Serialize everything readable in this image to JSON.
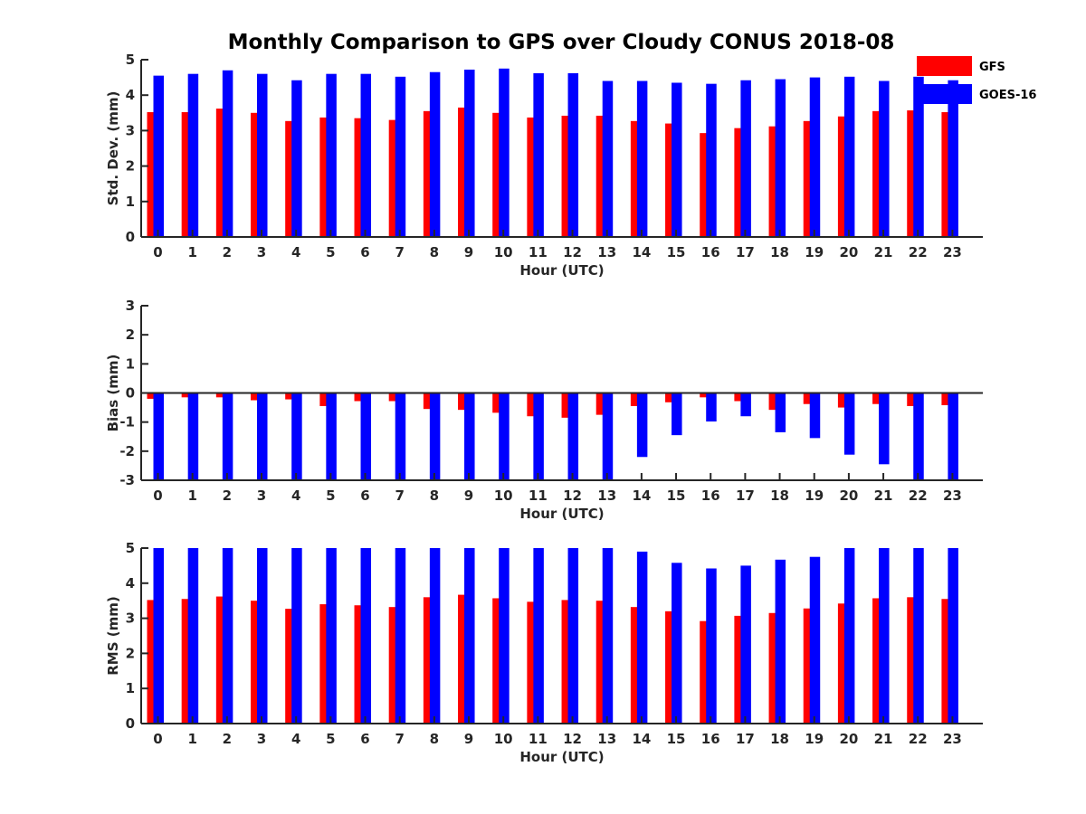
{
  "title": "Monthly Comparison to GPS over Cloudy CONUS 2018-08",
  "colors": {
    "GFS": "#ff0000",
    "GOES-16": "#0000ff",
    "axis": "#262626"
  },
  "legend": {
    "placement": "top-right",
    "entries": [
      "GFS",
      "GOES-16"
    ]
  },
  "chart_data": [
    {
      "type": "bar",
      "ylabel": "Std. Dev. (mm)",
      "xlabel": "Hour (UTC)",
      "ylim": [
        0,
        5
      ],
      "yticks": [
        0,
        1,
        2,
        3,
        4,
        5
      ],
      "categories": [
        "0",
        "1",
        "2",
        "3",
        "4",
        "5",
        "6",
        "7",
        "8",
        "9",
        "10",
        "11",
        "12",
        "13",
        "14",
        "15",
        "16",
        "17",
        "18",
        "19",
        "20",
        "21",
        "22",
        "23"
      ],
      "series": [
        {
          "name": "GFS",
          "values": [
            3.52,
            3.52,
            3.62,
            3.5,
            3.27,
            3.37,
            3.35,
            3.3,
            3.55,
            3.65,
            3.5,
            3.37,
            3.42,
            3.42,
            3.27,
            3.2,
            2.93,
            3.07,
            3.12,
            3.27,
            3.4,
            3.55,
            3.57,
            3.52
          ]
        },
        {
          "name": "GOES-16",
          "values": [
            4.55,
            4.6,
            4.7,
            4.6,
            4.42,
            4.6,
            4.6,
            4.52,
            4.65,
            4.72,
            4.75,
            4.62,
            4.62,
            4.4,
            4.4,
            4.35,
            4.32,
            4.42,
            4.45,
            4.5,
            4.52,
            4.4,
            4.52,
            4.42
          ]
        }
      ]
    },
    {
      "type": "bar",
      "ylabel": "Bias (mm)",
      "xlabel": "Hour (UTC)",
      "ylim": [
        -3,
        3
      ],
      "yticks": [
        -3,
        -2,
        -1,
        0,
        1,
        2,
        3
      ],
      "categories": [
        "0",
        "1",
        "2",
        "3",
        "4",
        "5",
        "6",
        "7",
        "8",
        "9",
        "10",
        "11",
        "12",
        "13",
        "14",
        "15",
        "16",
        "17",
        "18",
        "19",
        "20",
        "21",
        "22",
        "23"
      ],
      "series": [
        {
          "name": "GFS",
          "values": [
            -0.2,
            -0.15,
            -0.15,
            -0.25,
            -0.22,
            -0.45,
            -0.28,
            -0.28,
            -0.55,
            -0.58,
            -0.68,
            -0.8,
            -0.85,
            -0.75,
            -0.45,
            -0.32,
            -0.15,
            -0.28,
            -0.58,
            -0.38,
            -0.5,
            -0.38,
            -0.45,
            -0.42
          ]
        },
        {
          "name": "GOES-16",
          "values": [
            -3.0,
            -3.0,
            -3.0,
            -3.0,
            -3.0,
            -3.0,
            -3.0,
            -3.0,
            -3.0,
            -3.0,
            -3.0,
            -3.0,
            -3.0,
            -3.0,
            -2.2,
            -1.45,
            -0.98,
            -0.8,
            -1.35,
            -1.55,
            -2.12,
            -2.45,
            -3.0,
            -3.0
          ]
        }
      ]
    },
    {
      "type": "bar",
      "ylabel": "RMS (mm)",
      "xlabel": "Hour (UTC)",
      "ylim": [
        0,
        5
      ],
      "yticks": [
        0,
        1,
        2,
        3,
        4,
        5
      ],
      "categories": [
        "0",
        "1",
        "2",
        "3",
        "4",
        "5",
        "6",
        "7",
        "8",
        "9",
        "10",
        "11",
        "12",
        "13",
        "14",
        "15",
        "16",
        "17",
        "18",
        "19",
        "20",
        "21",
        "22",
        "23"
      ],
      "series": [
        {
          "name": "GFS",
          "values": [
            3.52,
            3.55,
            3.62,
            3.5,
            3.27,
            3.4,
            3.37,
            3.32,
            3.6,
            3.67,
            3.57,
            3.47,
            3.52,
            3.5,
            3.32,
            3.2,
            2.92,
            3.07,
            3.15,
            3.28,
            3.42,
            3.57,
            3.6,
            3.55
          ]
        },
        {
          "name": "GOES-16",
          "values": [
            5.0,
            5.0,
            5.0,
            5.0,
            5.0,
            5.0,
            5.0,
            5.0,
            5.0,
            5.0,
            5.0,
            5.0,
            5.0,
            5.0,
            4.9,
            4.58,
            4.42,
            4.5,
            4.67,
            4.75,
            5.0,
            5.0,
            5.0,
            5.0
          ]
        }
      ]
    }
  ]
}
